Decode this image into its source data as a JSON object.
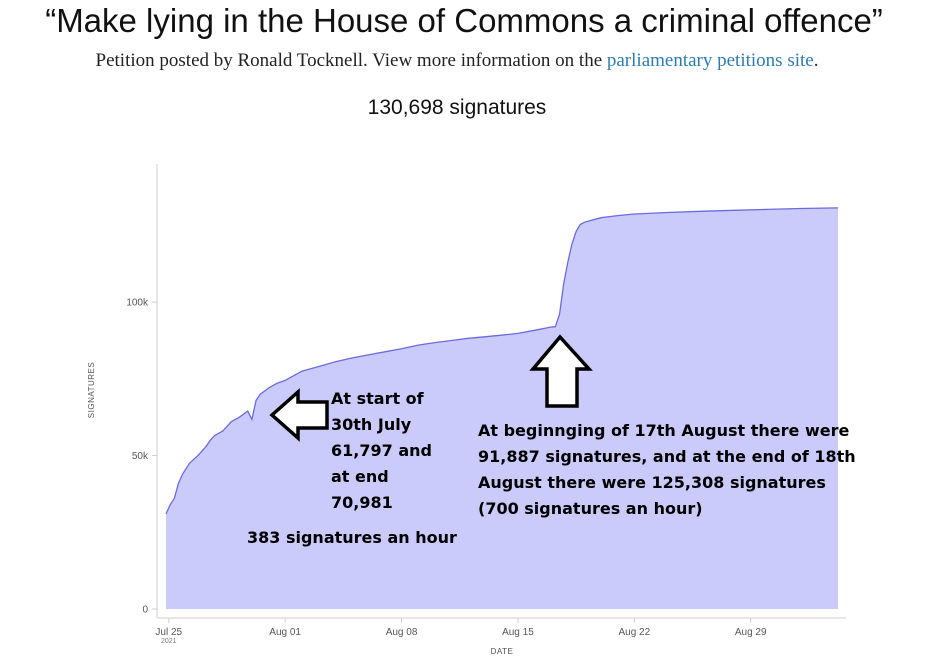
{
  "header": {
    "title": "“Make lying in the House of Commons a criminal offence”",
    "byline_prefix": "Petition posted by Ronald Tocknell. View more information on the ",
    "byline_link": "parliamentary petitions site",
    "byline_suffix": ".",
    "signature_count": "130,698 signatures"
  },
  "chart_data": {
    "type": "area",
    "xlabel": "DATE",
    "ylabel": "SIGNATURES",
    "x_ticks": [
      {
        "date": "2021-07-25",
        "label": "Jul 25",
        "sublabel": "2021"
      },
      {
        "date": "2021-08-01",
        "label": "Aug 01"
      },
      {
        "date": "2021-08-08",
        "label": "Aug 08"
      },
      {
        "date": "2021-08-15",
        "label": "Aug 15"
      },
      {
        "date": "2021-08-22",
        "label": "Aug 22"
      },
      {
        "date": "2021-08-29",
        "label": "Aug 29"
      }
    ],
    "y_ticks": [
      {
        "value": 0,
        "label": "0"
      },
      {
        "value": 50000,
        "label": "50k"
      },
      {
        "value": 100000,
        "label": "100k"
      }
    ],
    "xlim": [
      "2021-07-24T20:00",
      "2021-09-03T06:00"
    ],
    "ylim": [
      0,
      145000
    ],
    "grid": false,
    "fill_color": "#cbcbfb",
    "line_color": "#6b6be0",
    "series": [
      {
        "x": [
          "2021-07-24T20:00",
          "2021-07-25T02:00",
          "2021-07-25T08:00",
          "2021-07-25T14:00",
          "2021-07-25T20:00",
          "2021-07-26T06:00",
          "2021-07-26T18:00",
          "2021-07-27T06:00",
          "2021-07-27T12:00",
          "2021-07-27T18:00",
          "2021-07-28T06:00",
          "2021-07-28T12:00",
          "2021-07-28T18:00",
          "2021-07-29T06:00",
          "2021-07-29T12:00",
          "2021-07-29T18:00",
          "2021-07-30T00:00",
          "2021-07-30T06:00",
          "2021-07-30T12:00",
          "2021-07-30T18:00",
          "2021-07-31T00:00",
          "2021-07-31T12:00",
          "2021-08-01T00:00",
          "2021-08-01T12:00",
          "2021-08-02T00:00",
          "2021-08-03T00:00",
          "2021-08-04T00:00",
          "2021-08-05T00:00",
          "2021-08-06T00:00",
          "2021-08-07T00:00",
          "2021-08-08T00:00",
          "2021-08-09T00:00",
          "2021-08-10T00:00",
          "2021-08-11T00:00",
          "2021-08-12T00:00",
          "2021-08-13T00:00",
          "2021-08-14T00:00",
          "2021-08-15T00:00",
          "2021-08-16T00:00",
          "2021-08-17T00:00",
          "2021-08-17T06:00",
          "2021-08-17T12:00",
          "2021-08-17T18:00",
          "2021-08-18T00:00",
          "2021-08-18T06:00",
          "2021-08-18T12:00",
          "2021-08-18T18:00",
          "2021-08-19T00:00",
          "2021-08-19T12:00",
          "2021-08-20T00:00",
          "2021-08-21T00:00",
          "2021-08-22T00:00",
          "2021-08-24T00:00",
          "2021-08-26T00:00",
          "2021-08-28T00:00",
          "2021-08-30T00:00",
          "2021-09-01T00:00",
          "2021-09-03T06:00"
        ],
        "y": [
          31000,
          34000,
          36000,
          41000,
          44000,
          47500,
          50000,
          53000,
          55000,
          56500,
          58000,
          59500,
          61000,
          62500,
          63500,
          64500,
          61797,
          68000,
          70000,
          70981,
          72000,
          73500,
          74500,
          76000,
          77500,
          79000,
          80500,
          81800,
          82800,
          83800,
          84800,
          86000,
          86800,
          87500,
          88200,
          88700,
          89200,
          89800,
          90800,
          91887,
          92000,
          96000,
          106000,
          113000,
          119000,
          123000,
          125308,
          126000,
          126800,
          127500,
          128200,
          128700,
          129200,
          129600,
          129900,
          130200,
          130500,
          130698
        ]
      }
    ],
    "annotations": [
      {
        "lines": [
          "At start of",
          "30th July",
          "61,797 and",
          "at end",
          "70,981"
        ]
      },
      {
        "lines": [
          "383 signatures an hour"
        ]
      },
      {
        "lines": [
          "At beginnging of 17th August there were",
          "91,887 signatures, and at the end of 18th",
          "August there were 125,308 signatures",
          "(700 signatures an hour)"
        ]
      }
    ]
  }
}
